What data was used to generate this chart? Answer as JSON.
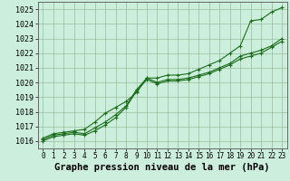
{
  "bg_color": "#cceedd",
  "grid_color": "#99bb99",
  "line_color": "#1a6e1a",
  "marker_color": "#1a6e1a",
  "xlabel": "Graphe pression niveau de la mer (hPa)",
  "xlabel_fontsize": 7.5,
  "ytick_fontsize": 6,
  "xtick_fontsize": 5.5,
  "ylim": [
    1015.5,
    1025.5
  ],
  "xlim": [
    -0.5,
    23.5
  ],
  "yticks": [
    1016,
    1017,
    1018,
    1019,
    1020,
    1021,
    1022,
    1023,
    1024,
    1025
  ],
  "xticks": [
    0,
    1,
    2,
    3,
    4,
    5,
    6,
    7,
    8,
    9,
    10,
    11,
    12,
    13,
    14,
    15,
    16,
    17,
    18,
    19,
    20,
    21,
    22,
    23
  ],
  "series": [
    [
      1016.2,
      1016.5,
      1016.6,
      1016.7,
      1016.6,
      1017.0,
      1017.5,
      1018.0,
      1018.5,
      1019.2,
      1020.0,
      1020.0,
      1020.2,
      1020.3,
      1020.4,
      1020.6,
      1020.8,
      1021.0,
      1021.5,
      1022.0,
      1023.2,
      1024.0,
      1024.4,
      1025.0
    ],
    [
      1016.1,
      1016.4,
      1016.5,
      1016.6,
      1016.5,
      1016.9,
      1017.3,
      1017.8,
      1018.4,
      1019.5,
      1020.3,
      1020.0,
      1020.2,
      1020.2,
      1020.3,
      1020.5,
      1020.7,
      1021.0,
      1021.3,
      1021.8,
      1022.0,
      1022.2,
      1022.5,
      1023.0
    ],
    [
      1016.0,
      1016.3,
      1016.4,
      1016.5,
      1016.4,
      1016.7,
      1017.1,
      1017.6,
      1018.3,
      1019.4,
      1020.2,
      1019.9,
      1020.1,
      1020.1,
      1020.2,
      1020.4,
      1020.6,
      1020.9,
      1021.2,
      1021.6,
      1021.8,
      1022.0,
      1022.4,
      1022.8
    ]
  ],
  "series_diverge": [
    1016.2,
    1016.5,
    1016.6,
    1016.7,
    1016.8,
    1017.3,
    1017.9,
    1018.3,
    1018.7,
    1019.3,
    1020.3,
    1020.3,
    1020.5,
    1020.5,
    1020.6,
    1020.9,
    1021.2,
    1021.5,
    1022.0,
    1022.5,
    1024.2,
    1024.3,
    1024.8,
    1025.1
  ]
}
